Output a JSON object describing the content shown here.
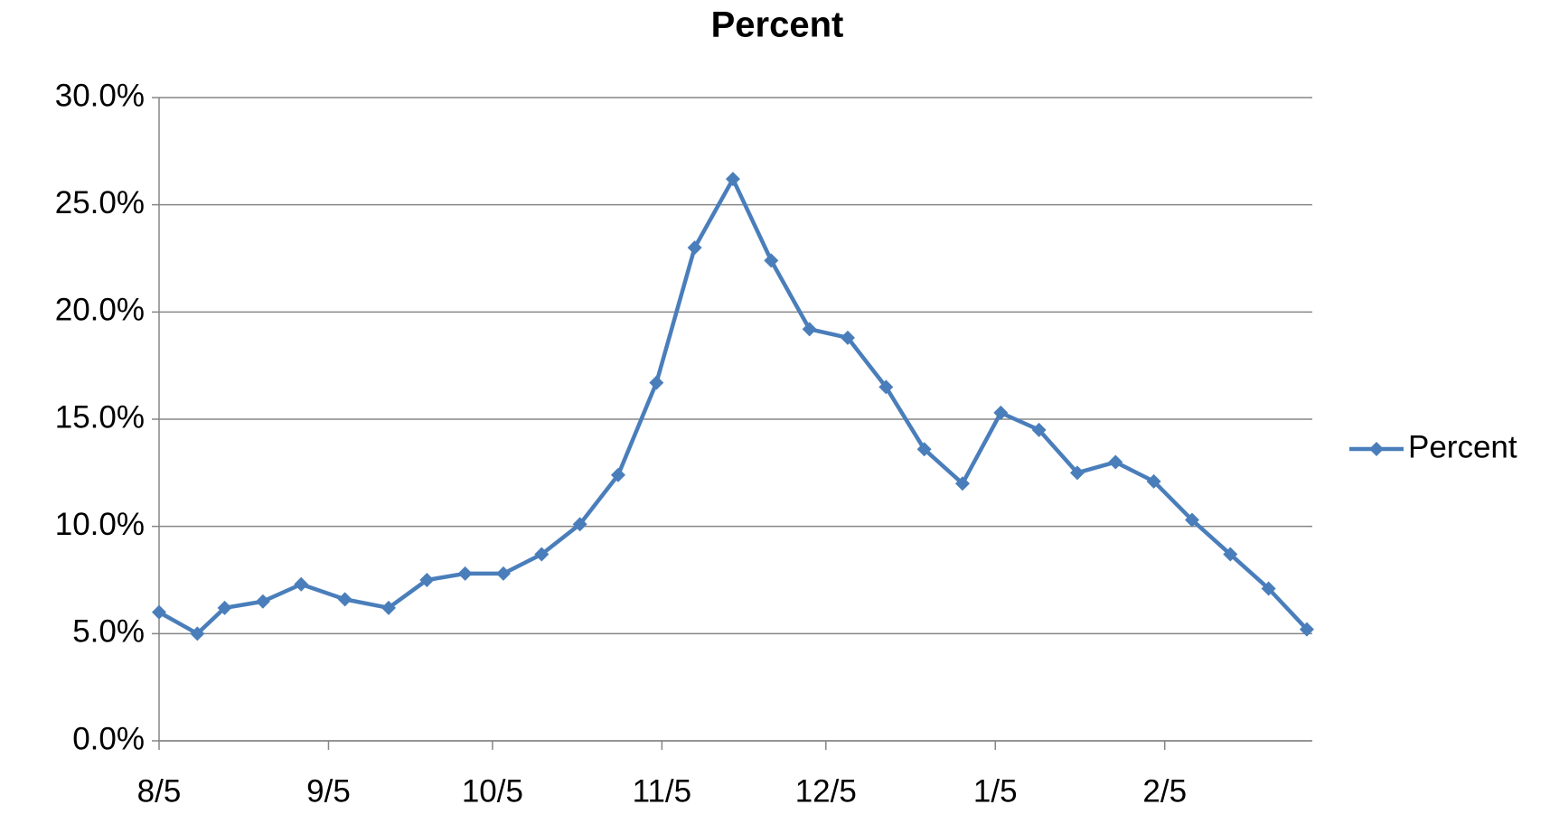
{
  "chart_data": {
    "type": "line",
    "title": "Percent",
    "x": [
      0,
      7,
      12,
      19,
      26,
      34,
      42,
      49,
      56,
      63,
      70,
      77,
      84,
      91,
      98,
      105,
      112,
      119,
      126,
      133,
      140,
      147,
      154,
      161,
      168,
      175,
      182,
      189,
      196,
      203,
      210
    ],
    "series": [
      {
        "name": "Percent",
        "color": "#4a7ebb",
        "values": [
          6.0,
          5.0,
          6.2,
          6.5,
          7.3,
          6.6,
          6.2,
          7.5,
          7.8,
          7.8,
          8.7,
          10.1,
          12.4,
          16.7,
          23.0,
          26.2,
          22.4,
          19.2,
          18.8,
          16.5,
          13.6,
          12.0,
          15.3,
          14.5,
          12.5,
          13.0,
          12.1,
          10.3,
          8.7,
          7.1,
          5.2
        ]
      }
    ],
    "xlim": [
      0,
      211
    ],
    "xticks": [
      {
        "value": 0,
        "label": "8/5"
      },
      {
        "value": 31,
        "label": "9/5"
      },
      {
        "value": 61,
        "label": "10/5"
      },
      {
        "value": 92,
        "label": "11/5"
      },
      {
        "value": 122,
        "label": "12/5"
      },
      {
        "value": 153,
        "label": "1/5"
      },
      {
        "value": 184,
        "label": "2/5"
      }
    ],
    "ylim": [
      0,
      30
    ],
    "yticks": [
      {
        "value": 0,
        "label": "0.0%"
      },
      {
        "value": 5,
        "label": "5.0%"
      },
      {
        "value": 10,
        "label": "10.0%"
      },
      {
        "value": 15,
        "label": "15.0%"
      },
      {
        "value": 20,
        "label": "20.0%"
      },
      {
        "value": 25,
        "label": "25.0%"
      },
      {
        "value": 30,
        "label": "30.0%"
      }
    ],
    "grid": true,
    "legend": "right"
  }
}
